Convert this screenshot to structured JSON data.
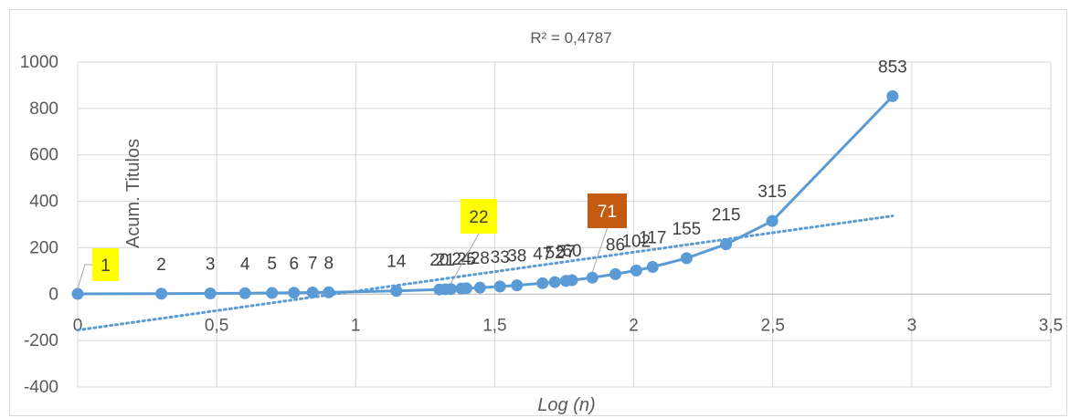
{
  "chart_data": {
    "type": "scatter",
    "title": "R² = 0,4787",
    "xlabel": "Log (n)",
    "ylabel": "Acum. Titulos",
    "xlim": [
      0,
      3.5
    ],
    "ylim": [
      -400,
      1000
    ],
    "x_ticks": [
      "0",
      "0,5",
      "1",
      "1,5",
      "2",
      "2,5",
      "3",
      "3,5"
    ],
    "y_ticks": [
      "1000",
      "800",
      "600",
      "400",
      "200",
      "0",
      "-200",
      "-400"
    ],
    "grid": "vertical and horizontal",
    "series": [
      {
        "color": "#5b9bd5",
        "points": [
          {
            "x": 0.0,
            "y": 1,
            "label": "1"
          },
          {
            "x": 0.301,
            "y": 2,
            "label": "2"
          },
          {
            "x": 0.477,
            "y": 3,
            "label": "3"
          },
          {
            "x": 0.602,
            "y": 4,
            "label": "4"
          },
          {
            "x": 0.699,
            "y": 5,
            "label": "5"
          },
          {
            "x": 0.778,
            "y": 6,
            "label": "6"
          },
          {
            "x": 0.845,
            "y": 7,
            "label": "7"
          },
          {
            "x": 0.903,
            "y": 8,
            "label": "8"
          },
          {
            "x": 1.146,
            "y": 14,
            "label": "14"
          },
          {
            "x": 1.301,
            "y": 20,
            "label": "20"
          },
          {
            "x": 1.322,
            "y": 21,
            "label": "21"
          },
          {
            "x": 1.342,
            "y": 22,
            "label": "22"
          },
          {
            "x": 1.38,
            "y": 24,
            "label": "24"
          },
          {
            "x": 1.398,
            "y": 25,
            "label": "25"
          },
          {
            "x": 1.447,
            "y": 28,
            "label": "28"
          },
          {
            "x": 1.519,
            "y": 33,
            "label": "33"
          },
          {
            "x": 1.58,
            "y": 38,
            "label": "38"
          },
          {
            "x": 1.672,
            "y": 47,
            "label": "47"
          },
          {
            "x": 1.716,
            "y": 52,
            "label": "52"
          },
          {
            "x": 1.756,
            "y": 57,
            "label": "57"
          },
          {
            "x": 1.778,
            "y": 60,
            "label": "60"
          },
          {
            "x": 1.851,
            "y": 71,
            "label": "71"
          },
          {
            "x": 1.934,
            "y": 86,
            "label": "86"
          },
          {
            "x": 2.009,
            "y": 102,
            "label": "102"
          },
          {
            "x": 2.068,
            "y": 117,
            "label": "117"
          },
          {
            "x": 2.19,
            "y": 155,
            "label": "155"
          },
          {
            "x": 2.332,
            "y": 215,
            "label": "215"
          },
          {
            "x": 2.498,
            "y": 315,
            "label": "315"
          },
          {
            "x": 2.931,
            "y": 853,
            "label": "853"
          }
        ]
      }
    ],
    "trendline": {
      "type": "linear",
      "style": "dotted",
      "color": "#5b9bd5",
      "x": [
        0,
        2.931
      ],
      "y": [
        -155,
        337
      ]
    },
    "callouts": [
      {
        "text": "1",
        "fill": "#ffff00",
        "text_color": "#404040"
      },
      {
        "text": "22",
        "fill": "#ffff00",
        "text_color": "#404040"
      },
      {
        "text": "71",
        "fill": "#c55a11",
        "text_color": "#ffffff"
      }
    ]
  }
}
